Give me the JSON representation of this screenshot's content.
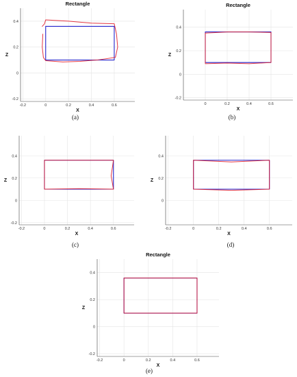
{
  "chart_data": [
    {
      "type": "line",
      "title": "Rectangle",
      "xlabel": "X",
      "ylabel": "Z",
      "xlim": [
        -0.22,
        0.78
      ],
      "ylim": [
        -0.22,
        0.5
      ],
      "xticks": [
        -0.2,
        0,
        0.2,
        0.4,
        0.6
      ],
      "yticks": [
        -0.2,
        0,
        0.2,
        0.4
      ],
      "grid": true,
      "caption": "(a)",
      "series": [
        {
          "color": "#2222cc",
          "x": [
            0,
            0.6,
            0.6,
            0,
            0
          ],
          "y": [
            0.36,
            0.36,
            0.1,
            0.1,
            0.36
          ]
        },
        {
          "color": "#e0202e",
          "x": [
            -0.03,
            -0.01,
            0.0,
            0.2,
            0.4,
            0.6,
            0.62,
            0.63,
            0.61,
            0.45,
            0.3,
            0.15,
            0.0,
            -0.02,
            -0.03,
            -0.025
          ],
          "y": [
            0.36,
            0.38,
            0.41,
            0.4,
            0.385,
            0.38,
            0.3,
            0.2,
            0.12,
            0.1,
            0.09,
            0.085,
            0.095,
            0.12,
            0.2,
            0.3
          ]
        }
      ]
    },
    {
      "type": "line",
      "title": "Rectangle",
      "xlabel": "X",
      "ylabel": "Z",
      "xlim": [
        -0.2,
        0.8
      ],
      "ylim": [
        -0.22,
        0.55
      ],
      "xticks": [
        0,
        0.2,
        0.4,
        0.6
      ],
      "yticks": [
        -0.2,
        0,
        0.2,
        0.4
      ],
      "grid": true,
      "caption": "(b)",
      "series": [
        {
          "color": "#2222cc",
          "x": [
            0,
            0.6,
            0.6,
            0,
            0
          ],
          "y": [
            0.36,
            0.36,
            0.1,
            0.1,
            0.36
          ]
        },
        {
          "color": "#e0202e",
          "x": [
            0.0,
            0.2,
            0.4,
            0.6,
            0.6,
            0.4,
            0.2,
            0.0,
            0.0
          ],
          "y": [
            0.35,
            0.36,
            0.36,
            0.355,
            0.1,
            0.09,
            0.095,
            0.09,
            0.35
          ]
        }
      ]
    },
    {
      "type": "line",
      "title": "",
      "xlabel": "X",
      "ylabel": "Z",
      "xlim": [
        -0.22,
        0.78
      ],
      "ylim": [
        -0.22,
        0.58
      ],
      "xticks": [
        -0.2,
        0,
        0.2,
        0.4,
        0.6
      ],
      "yticks": [
        -0.2,
        0,
        0.2,
        0.4
      ],
      "grid": true,
      "caption": "(c)",
      "series": [
        {
          "color": "#2222cc",
          "x": [
            0,
            0.6,
            0.6,
            0,
            0
          ],
          "y": [
            0.36,
            0.36,
            0.1,
            0.1,
            0.36
          ]
        },
        {
          "color": "#e0202e",
          "x": [
            0.0,
            0.3,
            0.6,
            0.58,
            0.6,
            0.3,
            0.0,
            0.0
          ],
          "y": [
            0.36,
            0.36,
            0.36,
            0.22,
            0.1,
            0.105,
            0.1,
            0.36
          ]
        }
      ]
    },
    {
      "type": "line",
      "title": "",
      "xlabel": "X",
      "ylabel": "Z",
      "xlim": [
        -0.22,
        0.78
      ],
      "ylim": [
        -0.22,
        0.58
      ],
      "xticks": [
        -0.2,
        0,
        0.2,
        0.4,
        0.6
      ],
      "yticks": [
        0,
        0.2,
        0.4
      ],
      "grid": true,
      "caption": "(d)",
      "series": [
        {
          "color": "#2222cc",
          "x": [
            0,
            0.6,
            0.6,
            0,
            0
          ],
          "y": [
            0.36,
            0.36,
            0.1,
            0.1,
            0.36
          ]
        },
        {
          "color": "#e0202e",
          "x": [
            0.0,
            0.3,
            0.6,
            0.6,
            0.3,
            0.0,
            0.0
          ],
          "y": [
            0.36,
            0.345,
            0.36,
            0.1,
            0.09,
            0.1,
            0.36
          ]
        }
      ]
    },
    {
      "type": "line",
      "title": "Rectangle",
      "xlabel": "X",
      "ylabel": "Z",
      "xlim": [
        -0.22,
        0.78
      ],
      "ylim": [
        -0.22,
        0.5
      ],
      "xticks": [
        -0.2,
        0,
        0.2,
        0.4,
        0.6
      ],
      "yticks": [
        -0.2,
        0,
        0.2,
        0.4
      ],
      "grid": true,
      "caption": "(e)",
      "series": [
        {
          "color": "#2222cc",
          "x": [
            0,
            0.6,
            0.6,
            0,
            0
          ],
          "y": [
            0.36,
            0.36,
            0.1,
            0.1,
            0.36
          ]
        },
        {
          "color": "#e0202e",
          "x": [
            0.0,
            0.3,
            0.6,
            0.6,
            0.3,
            0.0,
            0.0
          ],
          "y": [
            0.36,
            0.36,
            0.36,
            0.1,
            0.1,
            0.1,
            0.36
          ]
        }
      ]
    }
  ]
}
